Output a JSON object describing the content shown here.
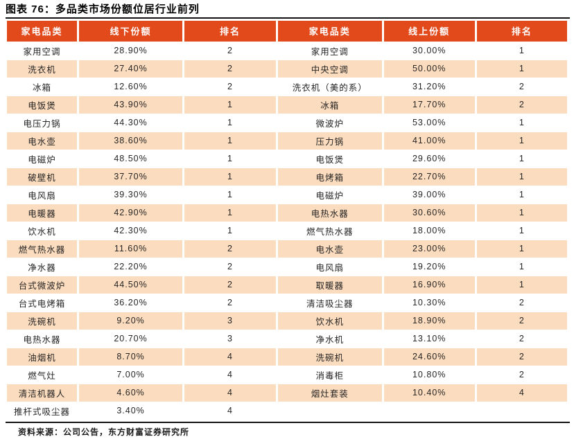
{
  "title": "图表 76：多品类市场份额位居行业前列",
  "source_note": "资料来源：公司公告，东方财富证券研究所",
  "colors": {
    "header_bg": "#E2491B",
    "row_alt_bg": "#FBDCBE",
    "header_text": "#FFFFFF",
    "body_text": "#262424",
    "rule": "#111111"
  },
  "table": {
    "headers": [
      "家电品类",
      "线下份额",
      "排名",
      "家电品类",
      "线上份额",
      "排名"
    ],
    "rows": [
      [
        "家用空调",
        "28.90%",
        "2",
        "家用空调",
        "30.00%",
        "1"
      ],
      [
        "洗衣机",
        "27.40%",
        "2",
        "中央空调",
        "50.00%",
        "1"
      ],
      [
        "冰箱",
        "12.60%",
        "2",
        "洗衣机（美的系）",
        "31.20%",
        "2"
      ],
      [
        "电饭煲",
        "43.90%",
        "1",
        "冰箱",
        "17.70%",
        "2"
      ],
      [
        "电压力锅",
        "44.30%",
        "1",
        "微波炉",
        "53.00%",
        "1"
      ],
      [
        "电水壶",
        "38.60%",
        "1",
        "压力锅",
        "41.00%",
        "1"
      ],
      [
        "电磁炉",
        "48.50%",
        "1",
        "电饭煲",
        "29.60%",
        "1"
      ],
      [
        "破壁机",
        "37.70%",
        "1",
        "电烤箱",
        "22.70%",
        "1"
      ],
      [
        "电风扇",
        "39.30%",
        "1",
        "电磁炉",
        "39.00%",
        "1"
      ],
      [
        "电暖器",
        "42.90%",
        "1",
        "电热水器",
        "30.60%",
        "1"
      ],
      [
        "饮水机",
        "42.30%",
        "1",
        "燃气热水器",
        "18.00%",
        "1"
      ],
      [
        "燃气热水器",
        "11.60%",
        "2",
        "电水壶",
        "23.00%",
        "1"
      ],
      [
        "净水器",
        "22.20%",
        "2",
        "电风扇",
        "19.20%",
        "1"
      ],
      [
        "台式微波炉",
        "44.50%",
        "2",
        "取暖器",
        "16.90%",
        "1"
      ],
      [
        "台式电烤箱",
        "36.20%",
        "2",
        "清洁吸尘器",
        "10.30%",
        "2"
      ],
      [
        "洗碗机",
        "9.20%",
        "3",
        "饮水机",
        "18.90%",
        "2"
      ],
      [
        "电热水器",
        "20.70%",
        "3",
        "净水机",
        "13.10%",
        "2"
      ],
      [
        "油烟机",
        "8.70%",
        "4",
        "洗碗机",
        "24.60%",
        "2"
      ],
      [
        "燃气灶",
        "7.00%",
        "4",
        "消毒柜",
        "10.80%",
        "2"
      ],
      [
        "清洁机器人",
        "4.60%",
        "4",
        "烟灶套装",
        "10.40%",
        "4"
      ],
      [
        "推杆式吸尘器",
        "3.40%",
        "4",
        "",
        "",
        ""
      ]
    ]
  }
}
